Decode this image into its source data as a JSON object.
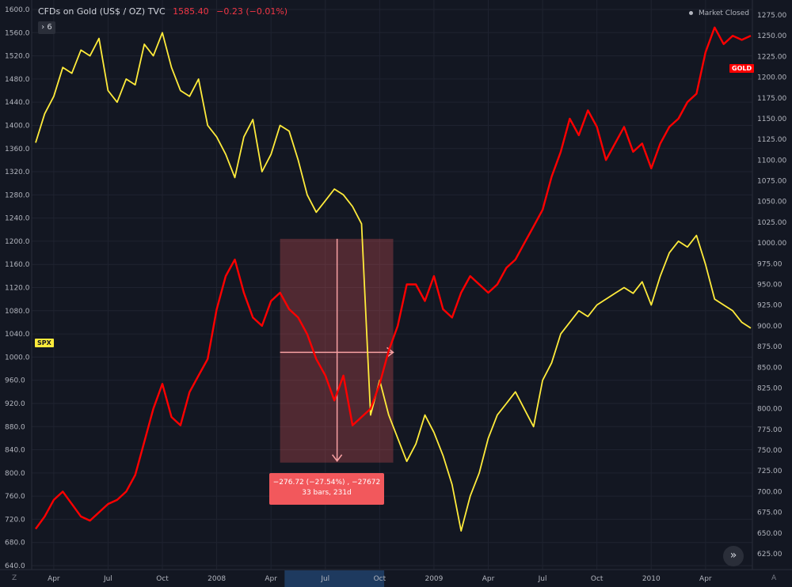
{
  "header": {
    "title": "CFDs on Gold (US$ / OZ)",
    "source": "TVC",
    "price": "1585.40",
    "change": "−0.23 (−0.01%)",
    "market_status": "Market Closed",
    "indicator_count": "6",
    "collapse_icon": "chevron-right-icon"
  },
  "labels": {
    "spx_tag": "SPX",
    "gold_tag": "GOLD",
    "measure_line1": "−276.72 (−27.54%) , −27672",
    "measure_line2": "33 bars, 231d",
    "bottom_left_corner": "Z",
    "bottom_right_corner": "A"
  },
  "colors": {
    "background": "#131722",
    "gold": "#ff0000",
    "spx": "#ffeb3b",
    "measure": "#f2585c"
  },
  "chart_data": {
    "type": "line",
    "x_ticks": [
      "Apr",
      "Jul",
      "Oct",
      "2008",
      "Apr",
      "Jul",
      "Oct",
      "2009",
      "Apr",
      "Jul",
      "Oct",
      "2010",
      "Apr"
    ],
    "x_tick_idx": [
      2,
      8,
      14,
      20,
      26,
      32,
      38,
      44,
      50,
      56,
      62,
      68,
      74
    ],
    "x_min_idx": 0,
    "x_max_idx": 79,
    "left_axis": {
      "min": 640,
      "max": 1600,
      "ticks": [
        640,
        680,
        720,
        760,
        800,
        840,
        880,
        920,
        960,
        1000,
        1040,
        1080,
        1120,
        1160,
        1200,
        1240,
        1280,
        1320,
        1360,
        1400,
        1440,
        1480,
        1520,
        1560,
        1600
      ]
    },
    "right_axis": {
      "min": 625,
      "max": 1275,
      "ticks": [
        625,
        650,
        675,
        700,
        725,
        750,
        775,
        800,
        825,
        850,
        875,
        900,
        925,
        950,
        975,
        1000,
        1025,
        1050,
        1075,
        1100,
        1125,
        1150,
        1175,
        1200,
        1225,
        1250,
        1275
      ]
    },
    "series": [
      {
        "name": "SPX",
        "axis": "left",
        "values": [
          1370,
          1420,
          1450,
          1500,
          1490,
          1530,
          1520,
          1550,
          1460,
          1440,
          1480,
          1470,
          1540,
          1520,
          1560,
          1500,
          1460,
          1450,
          1480,
          1400,
          1380,
          1350,
          1310,
          1380,
          1410,
          1320,
          1350,
          1400,
          1390,
          1340,
          1280,
          1250,
          1270,
          1290,
          1280,
          1260,
          1230,
          900,
          960,
          900,
          860,
          820,
          850,
          900,
          870,
          830,
          780,
          700,
          760,
          800,
          860,
          900,
          920,
          940,
          910,
          880,
          960,
          990,
          1040,
          1060,
          1080,
          1070,
          1090,
          1100,
          1110,
          1120,
          1110,
          1130,
          1090,
          1140,
          1180,
          1200,
          1190,
          1210,
          1160,
          1100,
          1090,
          1080,
          1060,
          1050
        ]
      },
      {
        "name": "GOLD",
        "axis": "right",
        "values": [
          655,
          670,
          690,
          700,
          685,
          670,
          665,
          675,
          685,
          690,
          700,
          720,
          760,
          800,
          830,
          790,
          780,
          820,
          840,
          860,
          920,
          960,
          980,
          940,
          910,
          900,
          930,
          940,
          920,
          910,
          890,
          860,
          840,
          810,
          840,
          780,
          790,
          800,
          830,
          870,
          900,
          950,
          950,
          930,
          960,
          920,
          910,
          940,
          960,
          950,
          940,
          950,
          970,
          980,
          1000,
          1020,
          1040,
          1080,
          1110,
          1150,
          1130,
          1160,
          1140,
          1100,
          1120,
          1140,
          1110,
          1120,
          1090,
          1120,
          1140,
          1150,
          1170,
          1180,
          1230,
          1260,
          1240,
          1250,
          1245,
          1250
        ]
      }
    ],
    "grid": true,
    "legend": "none"
  }
}
